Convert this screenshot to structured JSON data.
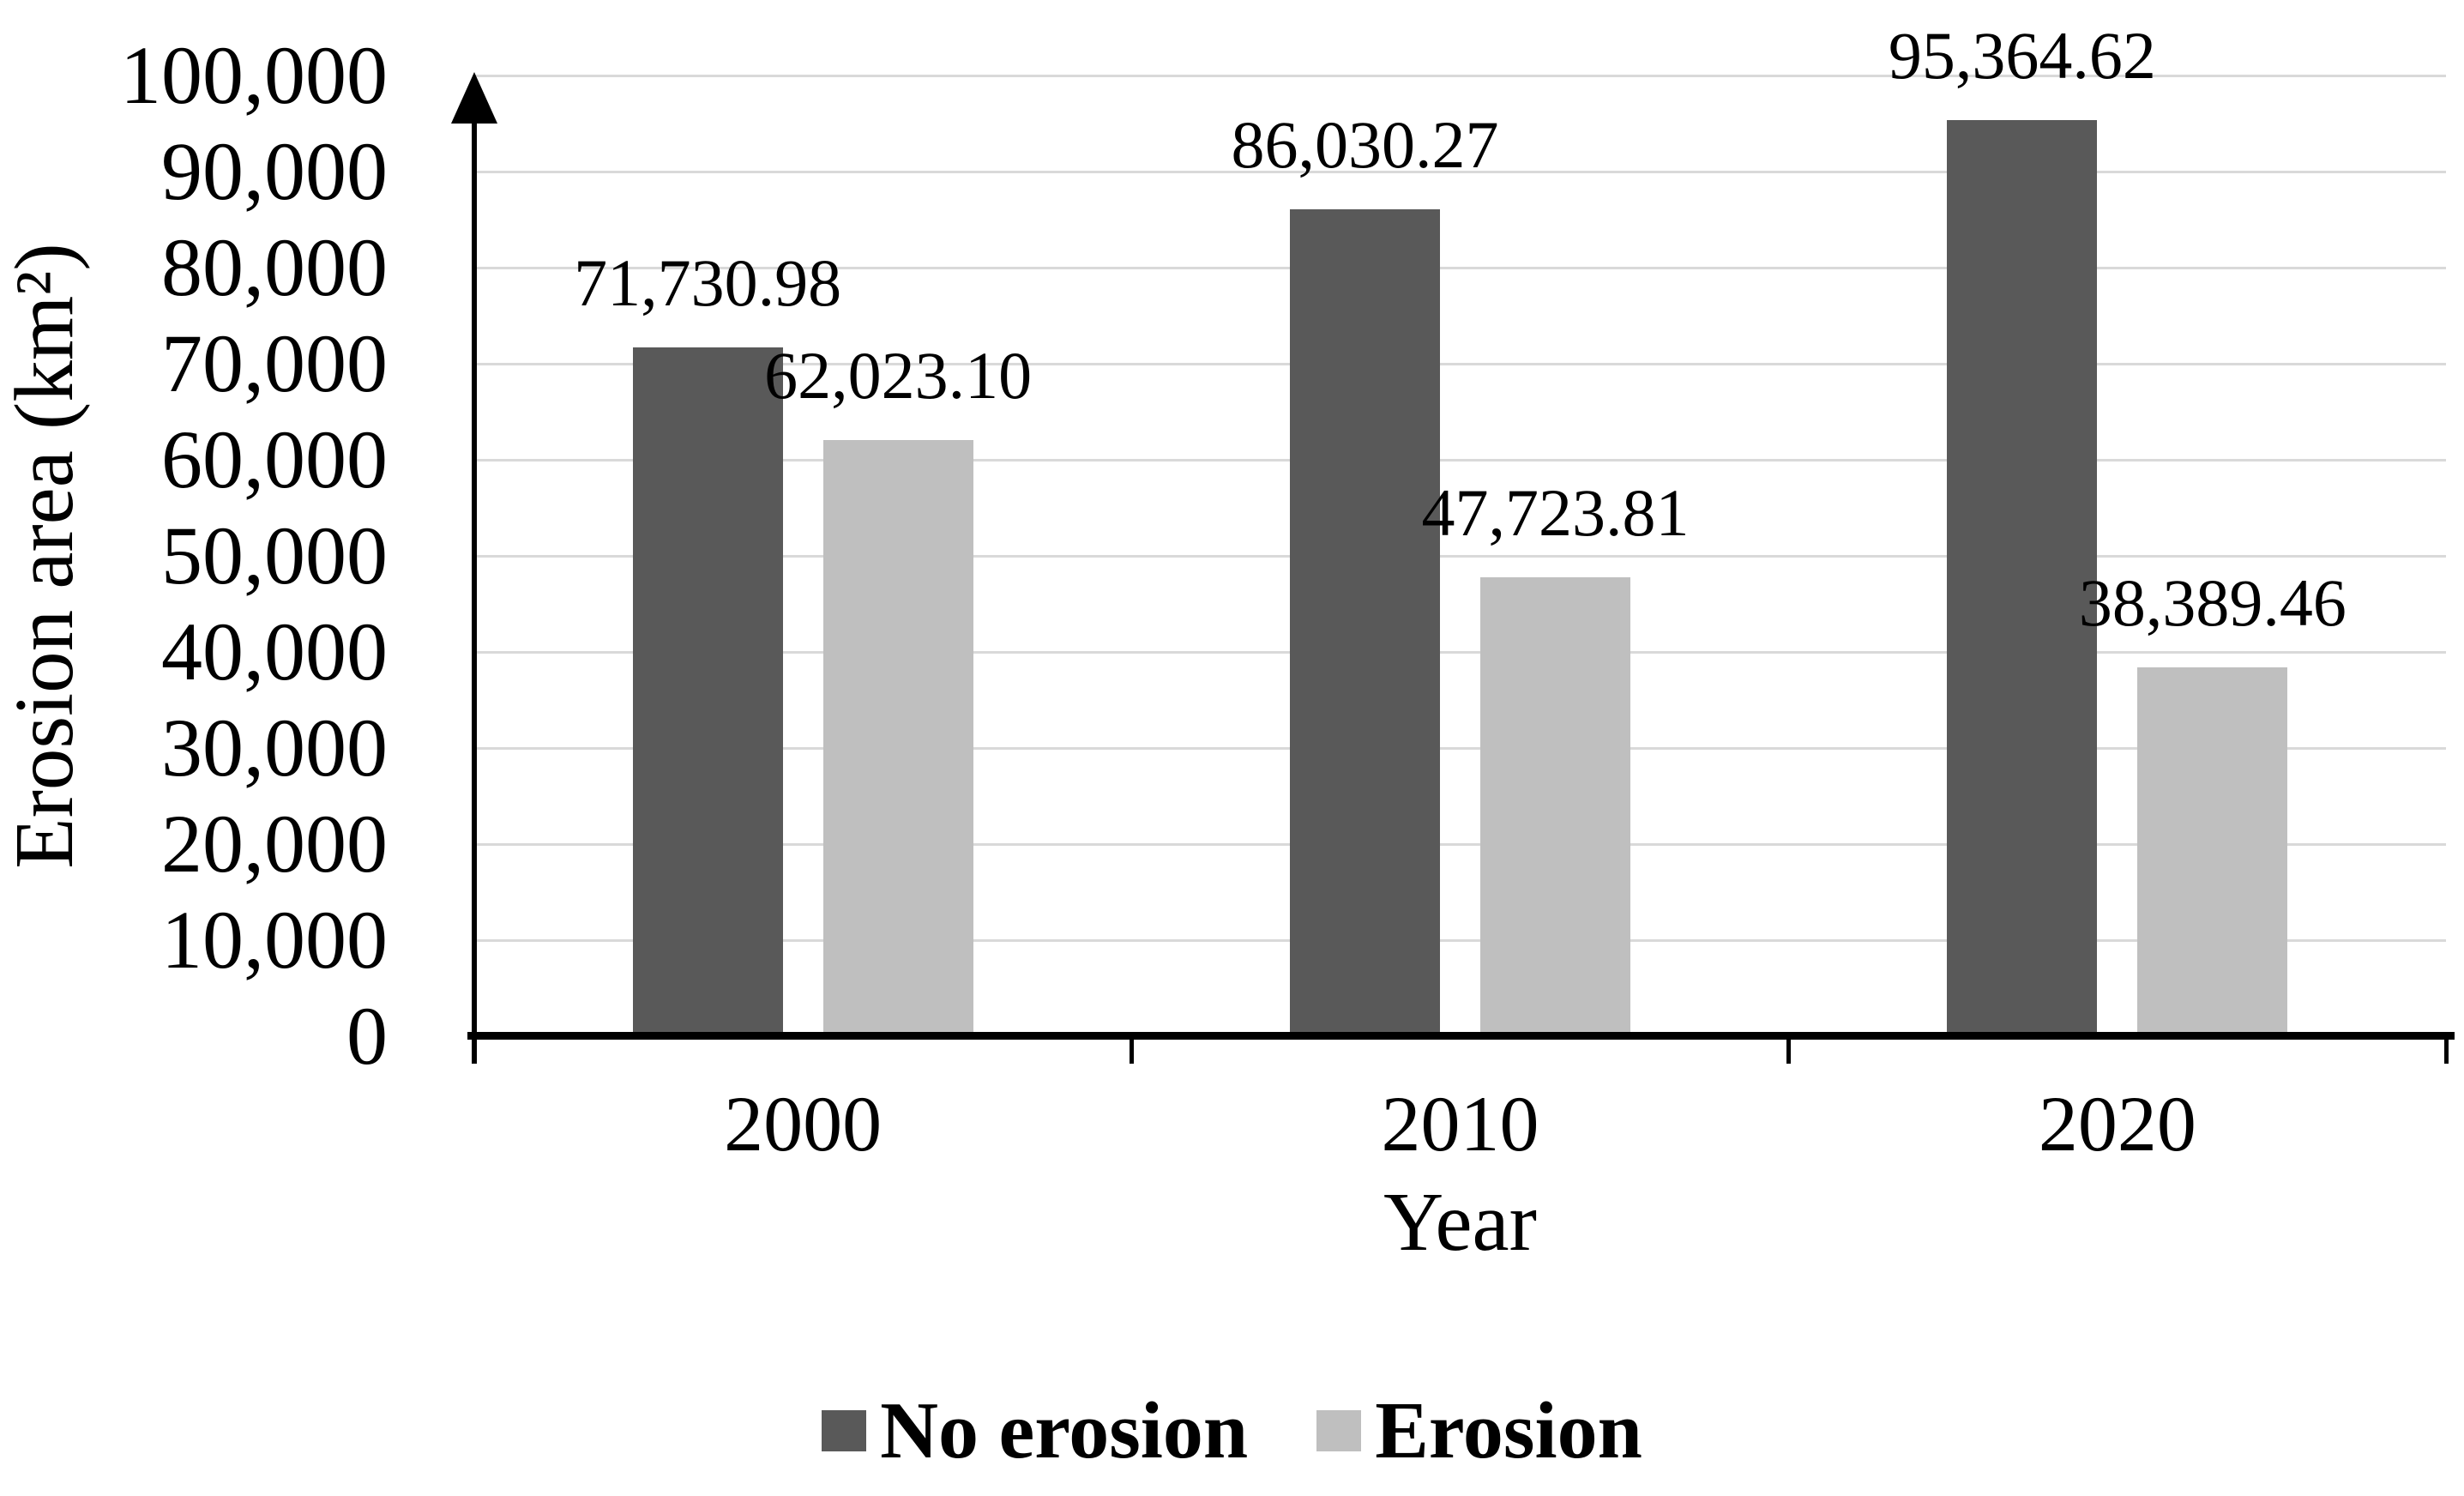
{
  "figure": {
    "background": "#FFFFFF"
  },
  "chart_data": {
    "type": "bar",
    "title": "",
    "xlabel": "Year",
    "ylabel": "Erosion area (km²)",
    "categories": [
      "2000",
      "2010",
      "2020"
    ],
    "series": [
      {
        "name": "No erosion",
        "color": "#595959",
        "values": [
          71730.98,
          86030.27,
          95364.62
        ],
        "data_labels": [
          "71,730.98",
          "86,030.27",
          "95,364.62"
        ]
      },
      {
        "name": "Erosion",
        "color": "#BFBFBF",
        "values": [
          62023.1,
          47723.81,
          38389.46
        ],
        "data_labels": [
          "62,023.10",
          "47,723.81",
          "38,389.46"
        ]
      }
    ],
    "y_axis": {
      "min": 0,
      "max": 100000,
      "tick_step": 10000,
      "tick_labels": [
        "0",
        "10,000",
        "20,000",
        "30,000",
        "40,000",
        "50,000",
        "60,000",
        "70,000",
        "80,000",
        "90,000",
        "100,000"
      ]
    },
    "x_axis": {
      "tick_labels": [
        "2000",
        "2010",
        "2020"
      ]
    },
    "legend": {
      "position": "bottom",
      "entries": [
        "No erosion",
        "Erosion"
      ]
    },
    "grid": true,
    "gridline_color": "#D9D9D9",
    "axis_color": "#000000",
    "text_color": "#000000"
  }
}
